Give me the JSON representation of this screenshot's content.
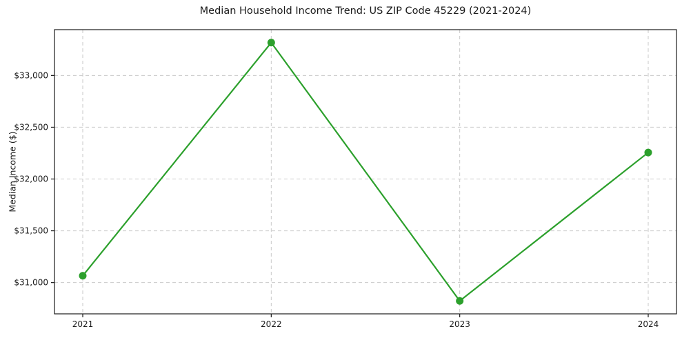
{
  "chart_data": {
    "type": "line",
    "title": "Median Household Income Trend: US ZIP Code 45229 (2021-2024)",
    "xlabel": "",
    "ylabel": "Median Income ($)",
    "x": [
      2021,
      2022,
      2023,
      2024
    ],
    "values": [
      31066,
      33317,
      30823,
      32256
    ],
    "x_tick_labels": [
      "2021",
      "2022",
      "2023",
      "2024"
    ],
    "y_tick_values": [
      31000,
      31500,
      32000,
      32500,
      33000
    ],
    "y_tick_labels": [
      "$31,000",
      "$31,500",
      "$32,000",
      "$32,500",
      "$33,000"
    ],
    "xlim": [
      2020.85,
      2024.15
    ],
    "ylim": [
      30698,
      33442
    ],
    "grid": true,
    "grid_style": "dashed",
    "legend_position": "none",
    "colors": {
      "line": "#2ca02c",
      "marker": "#2ca02c",
      "grid": "#c9c9c9",
      "spine": "#1a1a1a",
      "text": "#1a1a1a",
      "background": "#ffffff"
    }
  }
}
